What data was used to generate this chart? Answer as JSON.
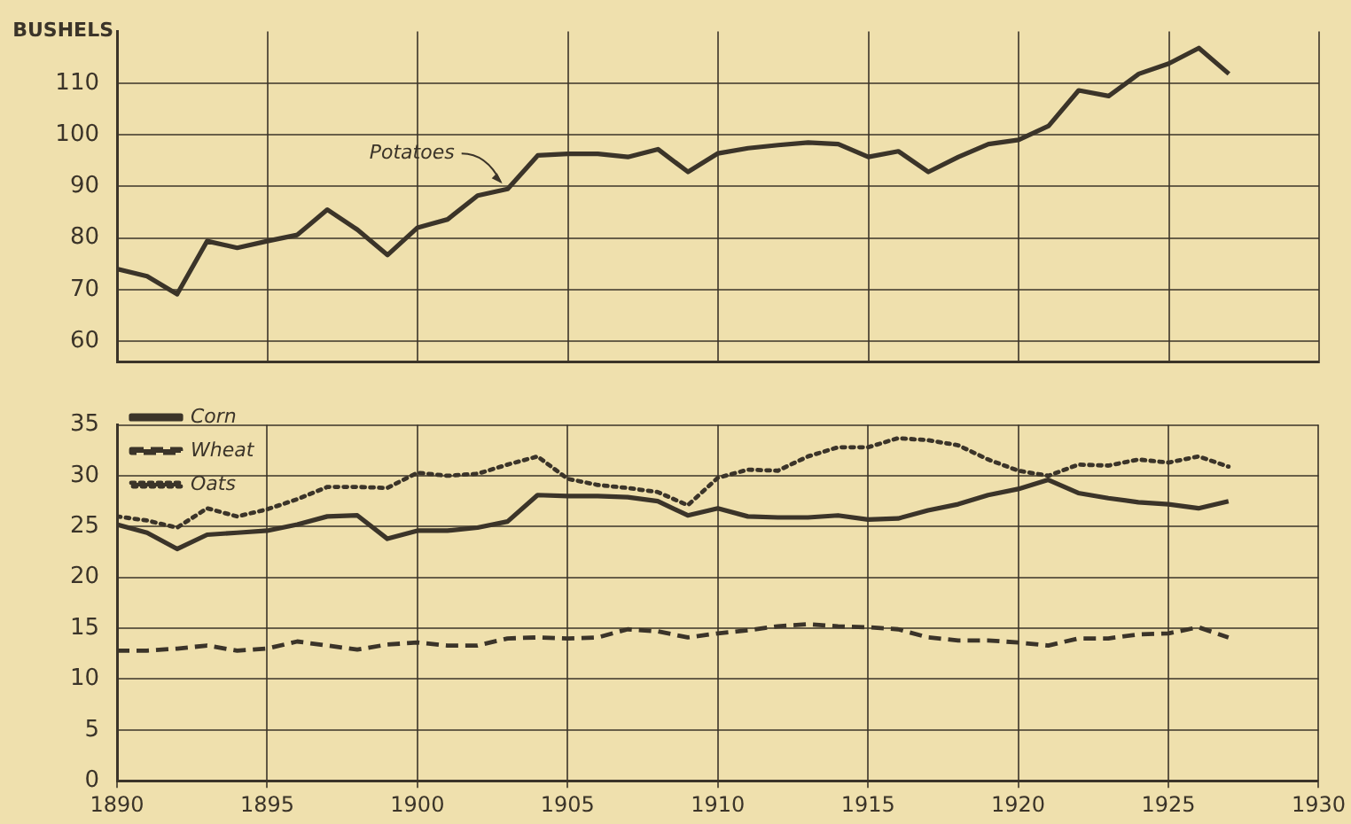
{
  "chart_data": [
    {
      "type": "line",
      "ylabel": "BUSHELS",
      "x": [
        1890,
        1891,
        1892,
        1893,
        1894,
        1895,
        1896,
        1897,
        1898,
        1899,
        1900,
        1901,
        1902,
        1903,
        1904,
        1905,
        1906,
        1907,
        1908,
        1909,
        1910,
        1911,
        1912,
        1913,
        1914,
        1915,
        1916,
        1917,
        1918,
        1919,
        1920,
        1921,
        1922,
        1923,
        1924,
        1925,
        1926,
        1927
      ],
      "series": [
        {
          "name": "Potatoes",
          "color": "#3b3429",
          "line_style": "solid",
          "values": [
            74,
            72.6,
            69.1,
            79.4,
            78.1,
            79.4,
            80.6,
            85.5,
            81.6,
            76.7,
            82,
            83.6,
            88.2,
            89.5,
            96,
            96.3,
            96.3,
            95.7,
            97.2,
            92.8,
            96.4,
            97.4,
            98,
            98.5,
            98.2,
            95.7,
            96.8,
            92.8,
            95.7,
            98.2,
            99,
            101.7,
            108.6,
            107.5,
            111.8,
            113.8,
            116.8,
            111.8
          ]
        }
      ],
      "xlim": [
        1890,
        1930
      ],
      "ylim": [
        56,
        120
      ],
      "yticks": [
        60,
        70,
        80,
        90,
        100,
        110
      ],
      "grid": true,
      "tick_labels": "y"
    },
    {
      "type": "line",
      "x": [
        1890,
        1891,
        1892,
        1893,
        1894,
        1895,
        1896,
        1897,
        1898,
        1899,
        1900,
        1901,
        1902,
        1903,
        1904,
        1905,
        1906,
        1907,
        1908,
        1909,
        1910,
        1911,
        1912,
        1913,
        1914,
        1915,
        1916,
        1917,
        1918,
        1919,
        1920,
        1921,
        1922,
        1923,
        1924,
        1925,
        1926,
        1927
      ],
      "series": [
        {
          "name": "Corn",
          "color": "#3b3429",
          "line_style": "solid",
          "values": [
            25.2,
            24.4,
            22.8,
            24.2,
            24.4,
            24.6,
            25.2,
            26,
            26.1,
            23.8,
            24.6,
            24.6,
            24.9,
            25.5,
            28.1,
            28,
            28,
            27.9,
            27.5,
            26.1,
            26.8,
            26,
            25.9,
            25.9,
            26.1,
            25.7,
            25.8,
            26.6,
            27.2,
            28.1,
            28.7,
            29.6,
            28.3,
            27.8,
            27.4,
            27.2,
            26.8,
            27.5
          ]
        },
        {
          "name": "Wheat",
          "color": "#3b3429",
          "line_style": "dashed",
          "values": [
            12.8,
            12.8,
            13,
            13.3,
            12.8,
            13,
            13.7,
            13.3,
            12.9,
            13.4,
            13.6,
            13.3,
            13.3,
            14,
            14.1,
            14,
            14.1,
            14.9,
            14.7,
            14.1,
            14.5,
            14.8,
            15.2,
            15.4,
            15.2,
            15.1,
            14.9,
            14.1,
            13.8,
            13.8,
            13.6,
            13.3,
            14,
            14,
            14.4,
            14.5,
            15.1,
            14.1
          ]
        },
        {
          "name": "Oats",
          "color": "#3b3429",
          "line_style": "dotted",
          "values": [
            26,
            25.6,
            24.9,
            26.8,
            26,
            26.7,
            27.7,
            28.9,
            28.9,
            28.8,
            30.3,
            30,
            30.2,
            31.1,
            31.9,
            29.7,
            29.1,
            28.8,
            28.4,
            27.1,
            29.8,
            30.6,
            30.5,
            31.9,
            32.8,
            32.8,
            33.7,
            33.5,
            33,
            31.6,
            30.5,
            30,
            31.1,
            31,
            31.6,
            31.3,
            31.9,
            30.9
          ]
        }
      ],
      "xlim": [
        1890,
        1930
      ],
      "xticks": [
        1890,
        1895,
        1900,
        1905,
        1910,
        1915,
        1920,
        1925,
        1930
      ],
      "ylim": [
        0,
        35
      ],
      "yticks": [
        0,
        5,
        10,
        15,
        20,
        25,
        30,
        35
      ],
      "grid": true,
      "legend": "top left"
    }
  ]
}
